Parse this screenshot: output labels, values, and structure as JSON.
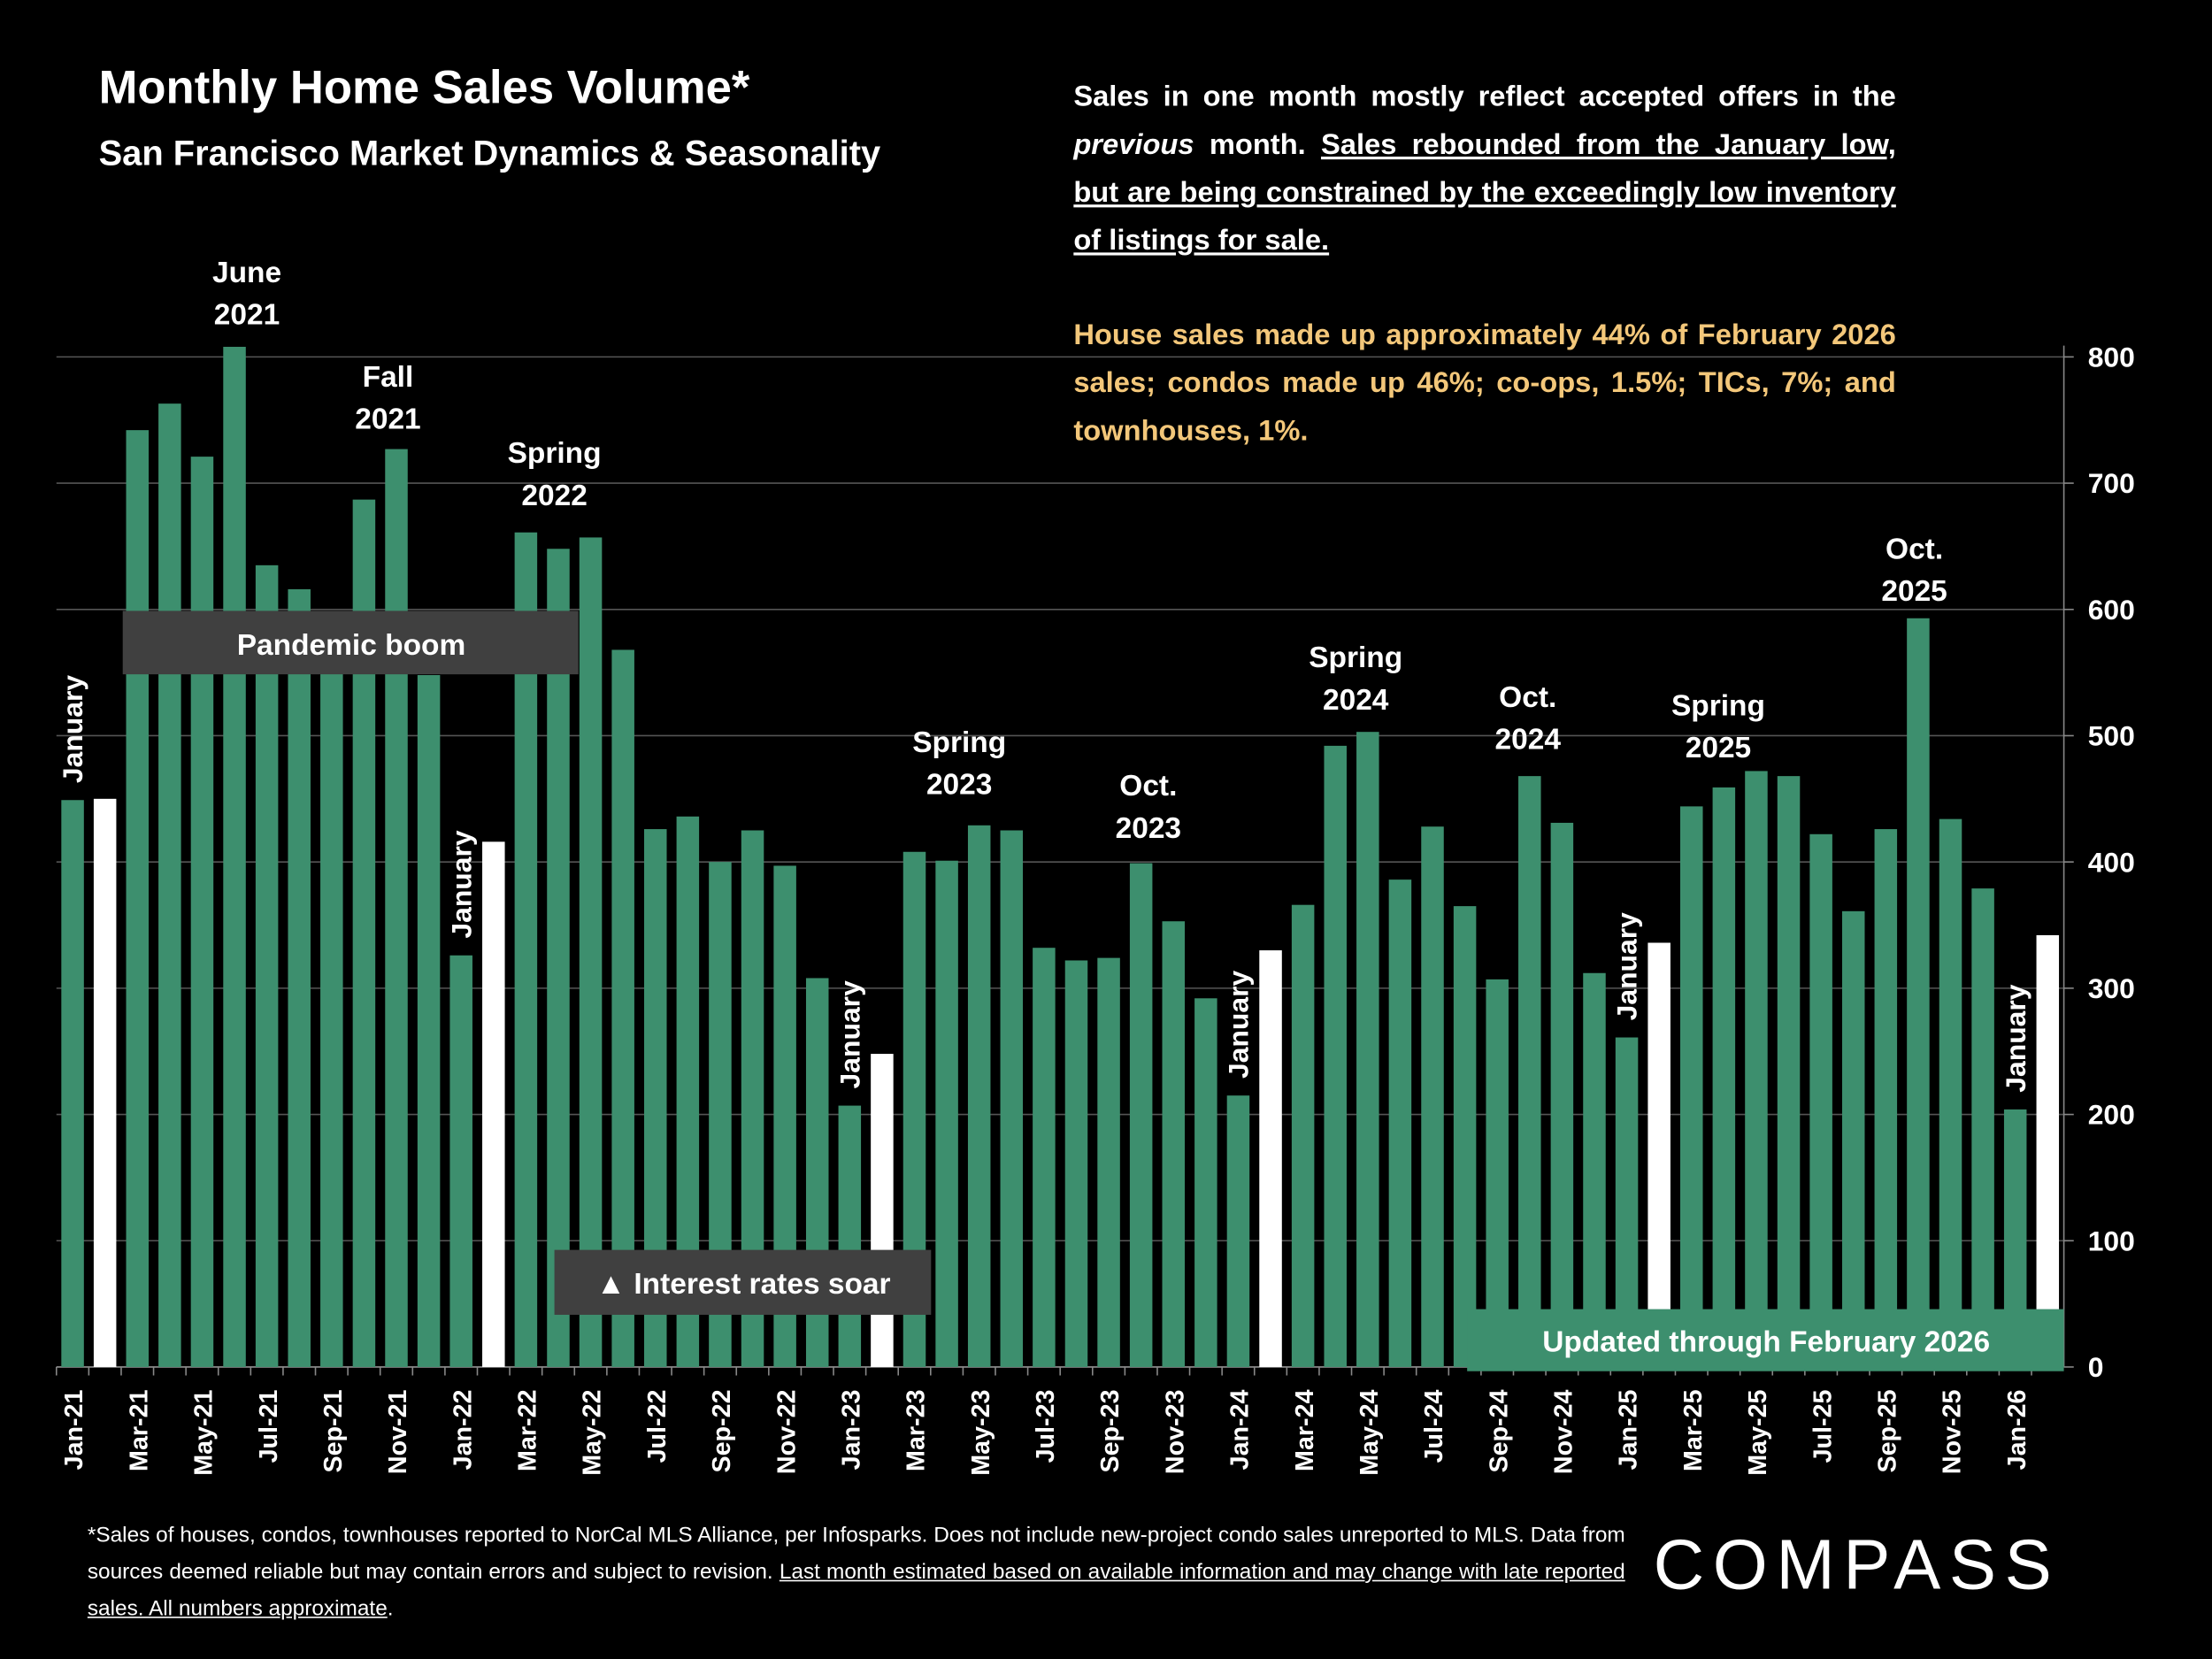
{
  "chart_data": {
    "type": "bar",
    "title": "Monthly Home Sales Volume*",
    "subtitle": "San Francisco Market Dynamics & Seasonality",
    "categories": [
      "Jan-21",
      null,
      "Mar-21",
      null,
      "May-21",
      null,
      "Jul-21",
      null,
      "Sep-21",
      null,
      "Nov-21",
      null,
      "Jan-22",
      null,
      "Mar-22",
      null,
      "May-22",
      null,
      "Jul-22",
      null,
      "Sep-22",
      null,
      "Nov-22",
      null,
      "Jan-23",
      null,
      "Mar-23",
      null,
      "May-23",
      null,
      "Jul-23",
      null,
      "Sep-23",
      null,
      "Nov-23",
      null,
      "Jan-24",
      null,
      "Mar-24",
      null,
      "May-24",
      null,
      "Jul-24",
      null,
      "Sep-24",
      null,
      "Nov-24",
      null,
      "Jan-25",
      null,
      "Mar-25",
      null,
      "May-25",
      null,
      "Jul-25",
      null,
      "Sep-25",
      null,
      "Nov-25",
      null,
      "Jan-26",
      null
    ],
    "values": [
      449,
      450,
      742,
      763,
      721,
      808,
      635,
      616,
      560,
      687,
      727,
      548,
      326,
      416,
      661,
      648,
      657,
      568,
      426,
      436,
      400,
      425,
      397,
      308,
      207,
      248,
      408,
      401,
      429,
      425,
      332,
      322,
      324,
      399,
      353,
      292,
      215,
      330,
      366,
      492,
      503,
      386,
      428,
      365,
      307,
      468,
      431,
      312,
      261,
      336,
      444,
      459,
      472,
      468,
      422,
      361,
      426,
      593,
      434,
      379,
      204,
      342
    ],
    "colors": [
      "#3d8f6e",
      "#ffffff",
      "#3d8f6e",
      "#3d8f6e",
      "#3d8f6e",
      "#3d8f6e",
      "#3d8f6e",
      "#3d8f6e",
      "#3d8f6e",
      "#3d8f6e",
      "#3d8f6e",
      "#3d8f6e",
      "#3d8f6e",
      "#ffffff",
      "#3d8f6e",
      "#3d8f6e",
      "#3d8f6e",
      "#3d8f6e",
      "#3d8f6e",
      "#3d8f6e",
      "#3d8f6e",
      "#3d8f6e",
      "#3d8f6e",
      "#3d8f6e",
      "#3d8f6e",
      "#ffffff",
      "#3d8f6e",
      "#3d8f6e",
      "#3d8f6e",
      "#3d8f6e",
      "#3d8f6e",
      "#3d8f6e",
      "#3d8f6e",
      "#3d8f6e",
      "#3d8f6e",
      "#3d8f6e",
      "#3d8f6e",
      "#ffffff",
      "#3d8f6e",
      "#3d8f6e",
      "#3d8f6e",
      "#3d8f6e",
      "#3d8f6e",
      "#3d8f6e",
      "#3d8f6e",
      "#3d8f6e",
      "#3d8f6e",
      "#3d8f6e",
      "#3d8f6e",
      "#ffffff",
      "#3d8f6e",
      "#3d8f6e",
      "#3d8f6e",
      "#3d8f6e",
      "#3d8f6e",
      "#3d8f6e",
      "#3d8f6e",
      "#3d8f6e",
      "#3d8f6e",
      "#3d8f6e",
      "#3d8f6e",
      "#ffffff"
    ],
    "ylim": [
      0,
      800
    ],
    "yticks": [
      0,
      100,
      200,
      300,
      400,
      500,
      600,
      700,
      800
    ],
    "grid": true,
    "y_axis_side": "right",
    "january_label": "January",
    "period_labels": [
      [
        "June",
        "2021"
      ],
      [
        "Fall",
        "2021"
      ],
      [
        "Spring",
        "2022"
      ],
      [
        "Spring",
        "2023"
      ],
      [
        "Oct.",
        "2023"
      ],
      [
        "Spring",
        "2024"
      ],
      [
        "Oct.",
        "2024"
      ],
      [
        "Spring",
        "2025"
      ],
      [
        "Oct.",
        "2025"
      ]
    ],
    "pandemic_label": "Pandemic boom",
    "rates_label": "▲ Interest rates soar",
    "updated_label": "Updated through February 2026"
  },
  "notes": {
    "paragraph1": [
      {
        "text": "Sales in one month mostly reflect accepted offers in the "
      },
      {
        "text": "previous",
        "style": "italic"
      },
      {
        "text": " month. "
      },
      {
        "text": "Sales rebounded from the January low, but are being constrained by the exceedingly low inventory of listings for sale.",
        "style": "underline"
      }
    ],
    "paragraph2": "House sales made up approximately 44% of February 2026 sales; condos made up 46%; co-ops, 1.5%; TICs, 7%; and townhouses, 1%."
  },
  "footnote": [
    {
      "text": "*Sales of houses, condos, townhouses reported to NorCal MLS Alliance, per Infosparks. Does not include new-project condo sales unreported to MLS. Data from sources deemed reliable but may contain errors and subject to revision. "
    },
    {
      "text": "Last month estimated based on available information and may change with late reported sales. All numbers approximate",
      "style": "underline"
    },
    {
      "text": "."
    }
  ],
  "logo": "COMPASS"
}
